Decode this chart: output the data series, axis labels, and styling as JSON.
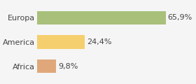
{
  "categories": [
    "Africa",
    "America",
    "Europa"
  ],
  "values": [
    9.8,
    24.4,
    65.9
  ],
  "labels": [
    "9,8%",
    "24,4%",
    "65,9%"
  ],
  "bar_colors": [
    "#e0a87a",
    "#f5cf6e",
    "#a8c07a"
  ],
  "background_color": "#f5f5f5",
  "xlim": [
    0,
    80
  ],
  "bar_height": 0.55,
  "label_fontsize": 8,
  "tick_fontsize": 8
}
